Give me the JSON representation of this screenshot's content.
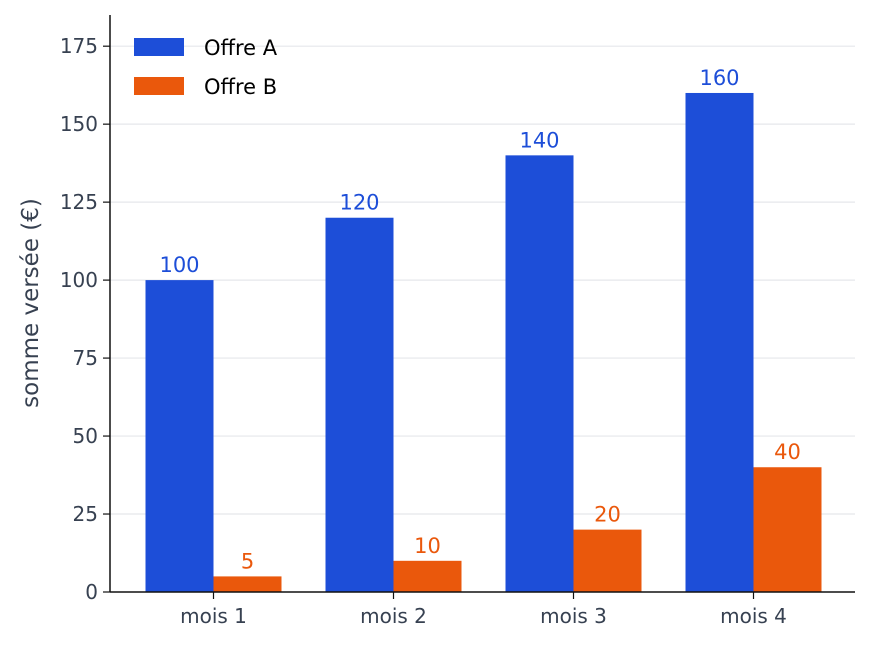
{
  "chart_data": {
    "type": "bar",
    "title": "",
    "xlabel": "",
    "ylabel": "somme versée (€)",
    "categories": [
      "mois 1",
      "mois 2",
      "mois 3",
      "mois 4"
    ],
    "series": [
      {
        "name": "Offre A",
        "values": [
          100,
          120,
          140,
          160
        ],
        "color": "#1d4ed8"
      },
      {
        "name": "Offre B",
        "values": [
          5,
          10,
          20,
          40
        ],
        "color": "#ea580c"
      }
    ],
    "ylim": [
      0,
      185
    ],
    "yticks": [
      0,
      25,
      50,
      75,
      100,
      125,
      150,
      175
    ],
    "grid": "horizontal",
    "legend_position": "top-left",
    "data_labels": true
  }
}
